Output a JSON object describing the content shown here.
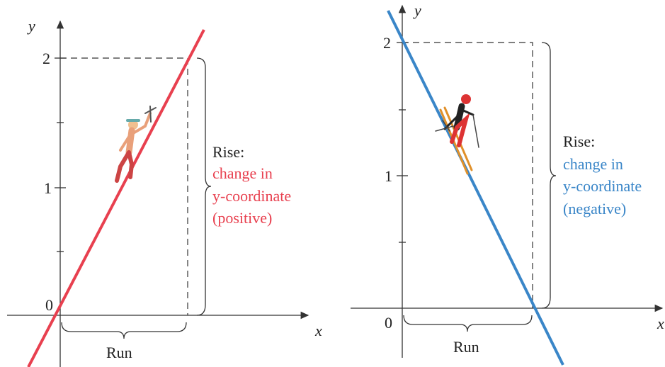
{
  "left": {
    "axis_labels": {
      "x": "x",
      "y": "y"
    },
    "tick_labels": [
      "0",
      "1",
      "2"
    ],
    "run_label": "Run",
    "rise": {
      "title": "Rise:",
      "lines": [
        "change in",
        "y-coordinate",
        "(positive)"
      ]
    }
  },
  "right": {
    "axis_labels": {
      "x": "x",
      "y": "y"
    },
    "tick_labels": [
      "0",
      "1",
      "2"
    ],
    "run_label": "Run",
    "rise": {
      "title": "Rise:",
      "lines": [
        "change in",
        "y-coordinate",
        "(negative)"
      ]
    }
  }
}
